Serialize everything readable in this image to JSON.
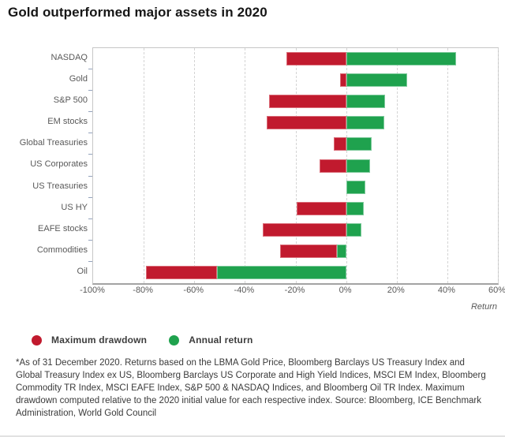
{
  "title": "Gold outperformed major assets in 2020",
  "colors": {
    "drawdown_red": "#c11a2e",
    "return_green": "#1fa24e",
    "grid": "#d4d4d4",
    "axis_text": "#595959"
  },
  "legend": [
    {
      "label": "Maximum drawdown",
      "color": "#c11a2e",
      "icon": "circle"
    },
    {
      "label": "Annual return",
      "color": "#1fa24e",
      "icon": "circle"
    }
  ],
  "axis": {
    "label": "Return",
    "tick_labels": [
      "-100%",
      "-80%",
      "-60%",
      "-40%",
      "-20%",
      "0%",
      "20%",
      "40%",
      "60%"
    ]
  },
  "chart_data": {
    "type": "bar",
    "orientation": "horizontal",
    "title": "Gold outperformed major assets in 2020",
    "xlabel": "Return",
    "xlim": [
      -100,
      60
    ],
    "grid": "dashed-vertical",
    "legend_position": "bottom",
    "categories": [
      "NASDAQ",
      "Gold",
      "S&P 500",
      "EM stocks",
      "Global Treasuries",
      "US Corporates",
      "US Treasuries",
      "US HY",
      "EAFE stocks",
      "Commodities",
      "Oil"
    ],
    "series": [
      {
        "name": "Maximum drawdown",
        "unit": "%",
        "values": [
          -23.5,
          -2.5,
          -30.5,
          -31.5,
          -5,
          -10.5,
          0,
          -19.5,
          -33,
          -26,
          -79
        ]
      },
      {
        "name": "Annual return",
        "unit": "%",
        "values": [
          43.5,
          24,
          15.5,
          15,
          10,
          9.5,
          7.5,
          7,
          6,
          -3.5,
          -51
        ]
      }
    ],
    "note": "Bars overlap: red spans drawdown to 0 (or to return when return is negative); green spans return to 0."
  },
  "footnote": "*As of 31 December 2020. Returns based on the LBMA Gold Price, Bloomberg Barclays US Treasury Index and Global Treasury Index ex US, Bloomberg Barclays US Corporate and High Yield Indices, MSCI EM Index, Bloomberg Commodity TR Index, MSCI EAFE Index, S&P 500 & NASDAQ Indices, and Bloomberg Oil TR Index. Maximum drawdown computed relative to the 2020 initial value for each respective index. Source: Bloomberg, ICE Benchmark Administration, World Gold Council"
}
